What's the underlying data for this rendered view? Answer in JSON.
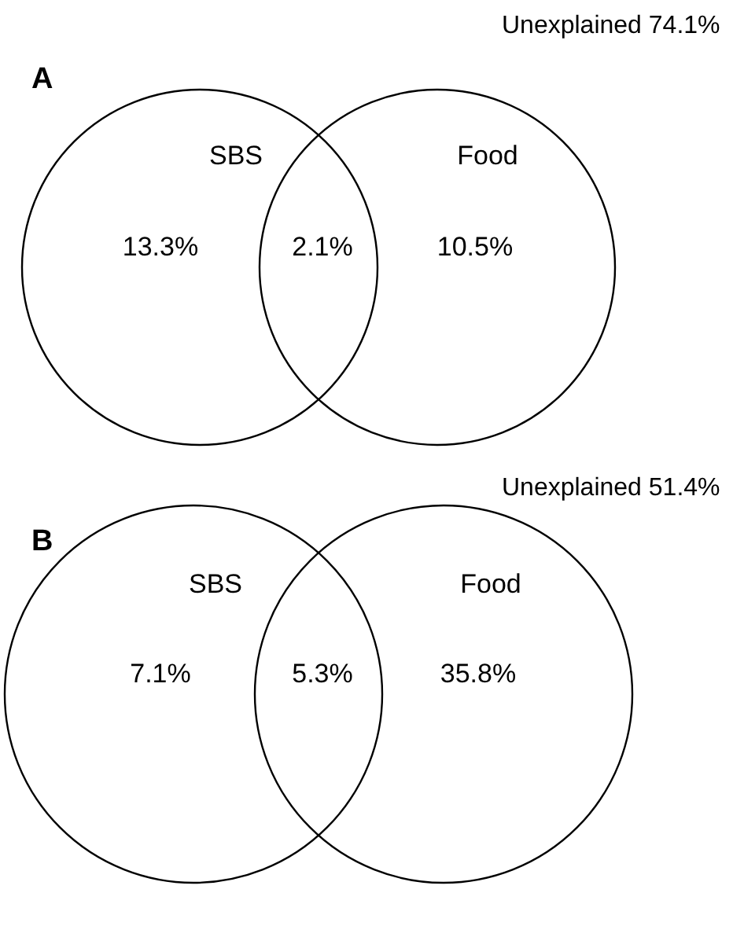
{
  "chart_data": [
    {
      "type": "other",
      "title": "A",
      "categories": [
        "SBS",
        null,
        "Food"
      ],
      "values": [
        13.3,
        2.1,
        10.5
      ],
      "value_labels": [
        "13.3%",
        "2.1%",
        "10.5%"
      ],
      "annotations": [
        "Unexplained 74.1%"
      ]
    },
    {
      "type": "other",
      "title": "B",
      "categories": [
        "SBS",
        null,
        "Food"
      ],
      "values": [
        7.1,
        5.3,
        35.8
      ],
      "value_labels": [
        "7.1%",
        "5.3%",
        "35.8%"
      ],
      "annotations": [
        "Unexplained 51.4%"
      ]
    }
  ]
}
